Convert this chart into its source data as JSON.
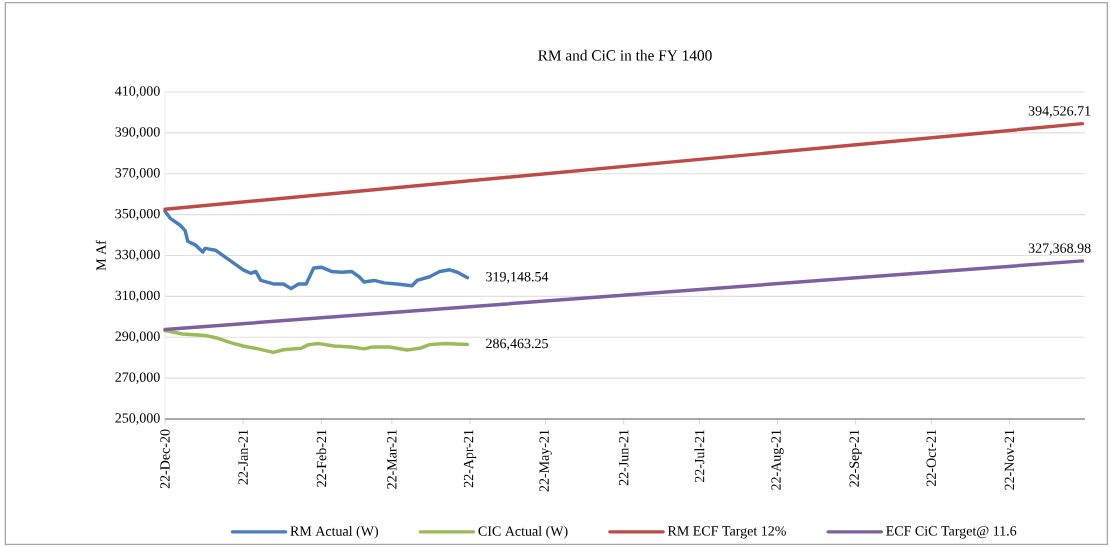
{
  "chart_data": {
    "type": "line",
    "title": "RM and CiC  in the FY 1400",
    "ylabel": "M Af",
    "xlim": [
      "2020-12-22",
      "2021-12-22"
    ],
    "xticks": [
      {
        "value": "2020-12-22",
        "label": "22-Dec-20"
      },
      {
        "value": "2021-01-22",
        "label": "22-Jan-21"
      },
      {
        "value": "2021-02-22",
        "label": "22-Feb-21"
      },
      {
        "value": "2021-03-22",
        "label": "22-Mar-21"
      },
      {
        "value": "2021-04-22",
        "label": "22-Apr-21"
      },
      {
        "value": "2021-05-22",
        "label": "22-May-21"
      },
      {
        "value": "2021-06-22",
        "label": "22-Jun-21"
      },
      {
        "value": "2021-07-22",
        "label": "22-Jul-21"
      },
      {
        "value": "2021-08-22",
        "label": "22-Aug-21"
      },
      {
        "value": "2021-09-22",
        "label": "22-Sep-21"
      },
      {
        "value": "2021-10-22",
        "label": "22-Oct-21"
      },
      {
        "value": "2021-11-22",
        "label": "22-Nov-21"
      }
    ],
    "ylim": [
      250000,
      410000
    ],
    "yticks": [
      {
        "value": 250000,
        "label": "250,000"
      },
      {
        "value": 270000,
        "label": "270,000"
      },
      {
        "value": 290000,
        "label": "290,000"
      },
      {
        "value": 310000,
        "label": "310,000"
      },
      {
        "value": 330000,
        "label": "330,000"
      },
      {
        "value": 350000,
        "label": "350,000"
      },
      {
        "value": 370000,
        "label": "370,000"
      },
      {
        "value": 390000,
        "label": "390,000"
      },
      {
        "value": 410000,
        "label": "410,000"
      }
    ],
    "grid": "y",
    "legend": "bottom",
    "marker": "none",
    "line_style": "solid",
    "series": [
      {
        "name": "RM Actual (W)",
        "color": "#4a7ebb",
        "x": [
          "2020-12-22",
          "2020-12-24",
          "2020-12-28",
          "2020-12-30",
          "2020-12-31",
          "2021-01-03",
          "2021-01-06",
          "2021-01-07",
          "2021-01-11",
          "2021-01-17",
          "2021-01-22",
          "2021-01-25",
          "2021-01-27",
          "2021-01-29",
          "2021-02-03",
          "2021-02-07",
          "2021-02-10",
          "2021-02-13",
          "2021-02-16",
          "2021-02-19",
          "2021-02-22",
          "2021-02-26",
          "2021-03-02",
          "2021-03-06",
          "2021-03-09",
          "2021-03-11",
          "2021-03-15",
          "2021-03-19",
          "2021-03-24",
          "2021-03-30",
          "2021-04-01",
          "2021-04-06",
          "2021-04-10",
          "2021-04-14",
          "2021-04-17",
          "2021-04-21"
        ],
        "values": [
          351700,
          348300,
          344800,
          342200,
          337000,
          335200,
          331700,
          333500,
          332600,
          327400,
          323000,
          321300,
          322200,
          317800,
          316100,
          316100,
          313800,
          316100,
          316100,
          323900,
          324300,
          322200,
          321800,
          322200,
          319600,
          317000,
          317800,
          316600,
          316100,
          315200,
          317800,
          319600,
          322200,
          323000,
          321800,
          319148.54
        ],
        "value_labels": [
          null,
          null,
          null,
          null,
          null,
          null,
          null,
          null,
          null,
          null,
          null,
          null,
          null,
          null,
          null,
          null,
          null,
          null,
          null,
          null,
          null,
          null,
          null,
          null,
          null,
          null,
          null,
          null,
          null,
          null,
          null,
          null,
          null,
          null,
          null,
          "319,148.54"
        ]
      },
      {
        "name": "CIC Actual (W)",
        "color": "#9bbb59",
        "x": [
          "2020-12-22",
          "2020-12-29",
          "2021-01-07",
          "2021-01-12",
          "2021-01-17",
          "2021-01-22",
          "2021-01-28",
          "2021-02-03",
          "2021-02-07",
          "2021-02-14",
          "2021-02-17",
          "2021-02-21",
          "2021-02-27",
          "2021-03-06",
          "2021-03-11",
          "2021-03-14",
          "2021-03-21",
          "2021-03-28",
          "2021-04-02",
          "2021-04-06",
          "2021-04-12",
          "2021-04-21"
        ],
        "values": [
          293300,
          291600,
          290900,
          289500,
          287400,
          285700,
          284300,
          282600,
          283900,
          284600,
          286400,
          286900,
          285700,
          285200,
          284300,
          285200,
          285200,
          283800,
          284600,
          286400,
          286900,
          286463.25
        ],
        "value_labels": [
          null,
          null,
          null,
          null,
          null,
          null,
          null,
          null,
          null,
          null,
          null,
          null,
          null,
          null,
          null,
          null,
          null,
          null,
          null,
          null,
          null,
          "286,463.25"
        ]
      },
      {
        "name": "RM ECF Target 12%",
        "color": "#be4b48",
        "x": [
          "2020-12-22",
          "2021-12-21"
        ],
        "values": [
          352600,
          394526.71
        ],
        "value_labels": [
          null,
          "394,526.71"
        ]
      },
      {
        "name": "ECF CiC Target@ 11.6",
        "color": "#7d60a0",
        "x": [
          "2020-12-22",
          "2021-12-21"
        ],
        "values": [
          293800,
          327368.98
        ],
        "value_labels": [
          null,
          "327,368.98"
        ]
      }
    ]
  }
}
